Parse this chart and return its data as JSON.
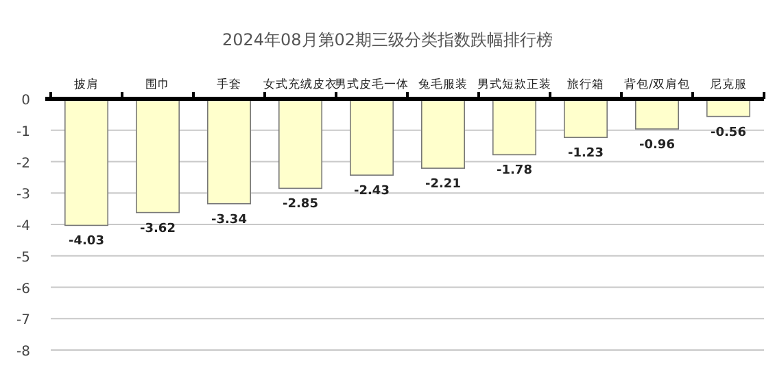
{
  "chart_data": {
    "type": "bar",
    "title": "2024年08月第02期三级分类指数跌幅排行榜",
    "categories": [
      "披肩",
      "围巾",
      "手套",
      "女式充绒皮衣",
      "男式皮毛一体",
      "兔毛服装",
      "男式短款正装",
      "旅行箱",
      "背包/双肩包",
      "尼克服"
    ],
    "values": [
      -4.03,
      -3.62,
      -3.34,
      -2.85,
      -2.43,
      -2.21,
      -1.78,
      -1.23,
      -0.96,
      -0.56
    ],
    "color": "#ffffcc",
    "ylim": [
      -8,
      0
    ],
    "yticks": [
      0,
      -1,
      -2,
      -3,
      -4,
      -5,
      -6,
      -7,
      -8
    ],
    "grid": "y",
    "data_labels": true
  }
}
